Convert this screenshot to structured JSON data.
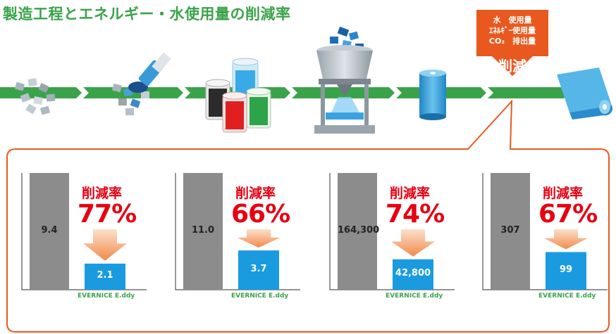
{
  "title": "製造工程とエネルギー・水使用量の削減率",
  "callout": {
    "line1": "水　使用量",
    "line2": "ｴﾈﾙｷﾞｰ使用量",
    "line3": "CO₂　排出量",
    "big": "削減"
  },
  "colors": {
    "green": "#3aa34a",
    "orange": "#e9591f",
    "red": "#e60012",
    "gray_bar": "#8c8c8c",
    "blue_bar": "#1a9be0"
  },
  "panels": [
    {
      "before": "9.4",
      "after": "2.1",
      "rate_label": "削減率",
      "rate": "77%",
      "brand": "EVERNICE E.ddy",
      "before_value": 9.4,
      "after_value": 2.1
    },
    {
      "before": "11.0",
      "after": "3.7",
      "rate_label": "削減率",
      "rate": "66%",
      "brand": "EVERNICE E.ddy",
      "before_value": 11.0,
      "after_value": 3.7
    },
    {
      "before": "164,300",
      "after": "42,800",
      "rate_label": "削減率",
      "rate": "74%",
      "brand": "EVERNICE E.ddy",
      "before_value": 164300,
      "after_value": 42800
    },
    {
      "before": "307",
      "after": "99",
      "rate_label": "削減率",
      "rate": "67%",
      "brand": "EVERNICE E.ddy",
      "before_value": 307,
      "after_value": 99
    }
  ]
}
